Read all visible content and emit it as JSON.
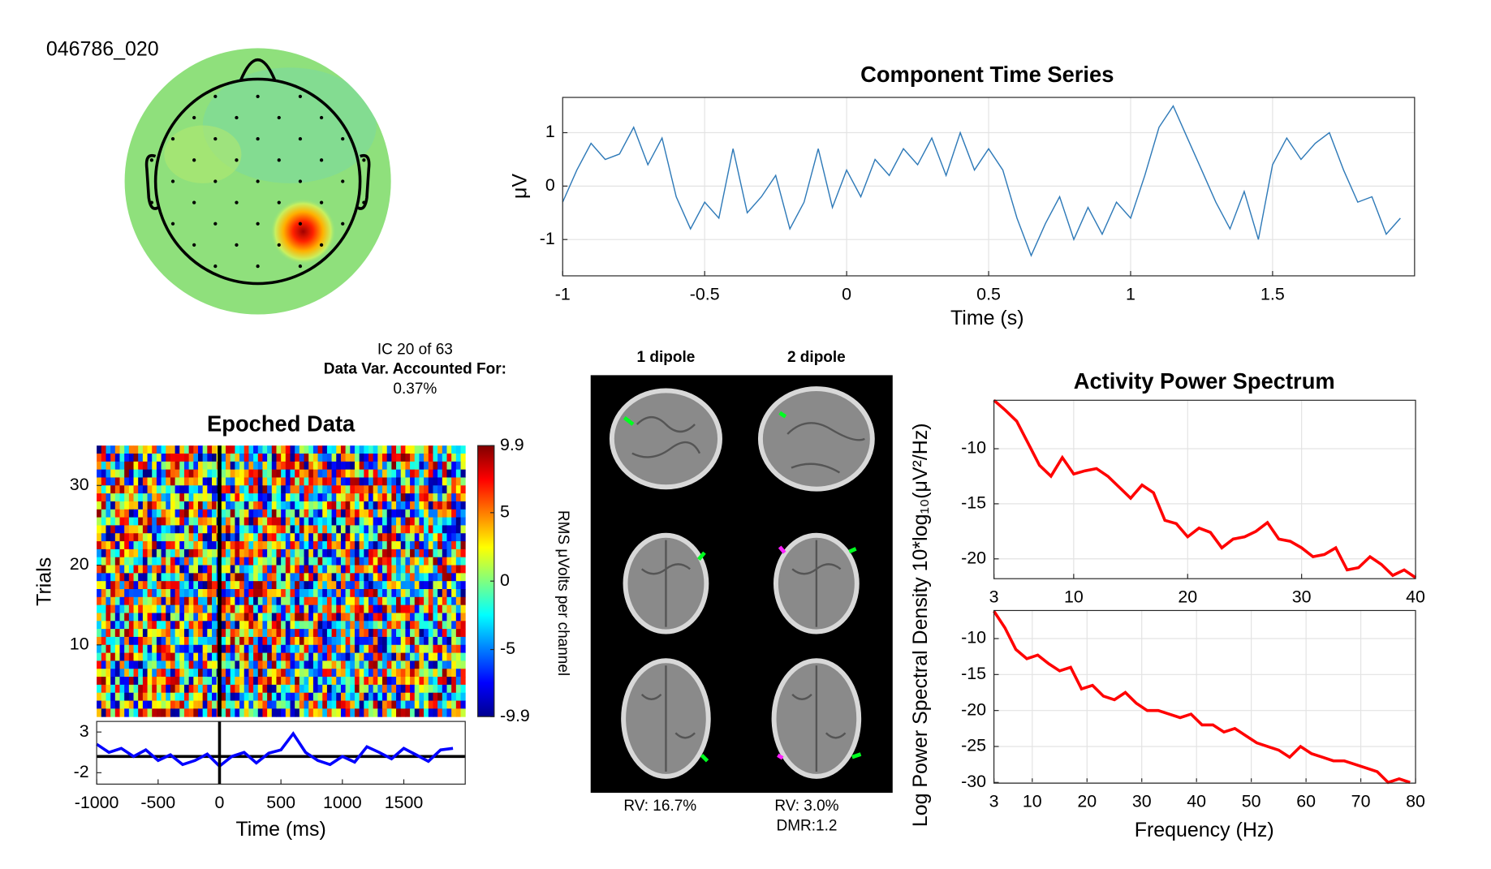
{
  "chart_data": [
    {
      "type": "topomap",
      "title": "046786_020"
    },
    {
      "type": "line",
      "title": "Component Time Series",
      "x_label": "Time (s)",
      "y_label": "μV",
      "color": "#2f7ab8",
      "grid": true,
      "x": [
        -1,
        -0.95,
        -0.9,
        -0.85,
        -0.8,
        -0.75,
        -0.7,
        -0.65,
        -0.6,
        -0.55,
        -0.5,
        -0.45,
        -0.4,
        -0.35,
        -0.3,
        -0.25,
        -0.2,
        -0.15,
        -0.1,
        -0.05,
        0,
        0.05,
        0.1,
        0.15,
        0.2,
        0.25,
        0.3,
        0.35,
        0.4,
        0.45,
        0.5,
        0.55,
        0.6,
        0.65,
        0.7,
        0.75,
        0.8,
        0.85,
        0.9,
        0.95,
        1,
        1.05,
        1.1,
        1.15,
        1.2,
        1.25,
        1.3,
        1.35,
        1.4,
        1.45,
        1.5,
        1.55,
        1.6,
        1.65,
        1.7,
        1.75,
        1.8,
        1.85,
        1.9,
        1.95
      ],
      "values": [
        -0.3,
        0.3,
        0.8,
        0.5,
        0.6,
        1.1,
        0.4,
        0.9,
        -0.2,
        -0.8,
        -0.3,
        -0.6,
        0.7,
        -0.5,
        -0.2,
        0.2,
        -0.8,
        -0.3,
        0.7,
        -0.4,
        0.3,
        -0.2,
        0.5,
        0.2,
        0.7,
        0.4,
        0.9,
        0.2,
        1.0,
        0.3,
        0.7,
        0.3,
        -0.6,
        -1.3,
        -0.7,
        -0.2,
        -1.0,
        -0.4,
        -0.9,
        -0.3,
        -0.6,
        0.2,
        1.1,
        1.5,
        0.9,
        0.3,
        -0.3,
        -0.8,
        -0.1,
        -1.0,
        0.4,
        0.9,
        0.5,
        0.8,
        1.0,
        0.3,
        -0.3,
        -0.2,
        -0.9,
        -0.6
      ],
      "xlim": [
        -1,
        2
      ],
      "xticks": [
        -1,
        -0.5,
        0,
        0.5,
        1,
        1.5
      ],
      "ylim": [
        -1.68,
        1.66
      ],
      "yticks": [
        -1,
        0,
        1
      ]
    },
    {
      "type": "image",
      "title": "Epoched Data",
      "y_label": "Trials",
      "ylim": [
        1,
        35
      ],
      "yticks": [
        10,
        20,
        30
      ],
      "xlim": [
        -1000,
        2000
      ],
      "colormap": "jet",
      "colorbar": {
        "label": "RMS μVolts per channel",
        "clim": [
          -9.9,
          9.9
        ],
        "ticks": [
          9.9,
          5,
          0,
          -5,
          -9.9
        ]
      },
      "annotations": [
        "IC 20 of 63",
        "Data Var. Accounted For:",
        "0.37%"
      ]
    },
    {
      "type": "line",
      "x_label": "Time (ms)",
      "color": "#0000ff",
      "grid": false,
      "x": [
        -1000,
        -900,
        -800,
        -700,
        -600,
        -500,
        -400,
        -300,
        -200,
        -100,
        0,
        100,
        200,
        300,
        400,
        500,
        600,
        700,
        800,
        900,
        1000,
        1100,
        1200,
        1300,
        1400,
        1500,
        1600,
        1700,
        1800,
        1900
      ],
      "values": [
        1.5,
        0.5,
        1,
        0,
        0.8,
        -0.5,
        0.2,
        -1,
        -0.5,
        0.3,
        -1.2,
        0,
        0.5,
        -0.8,
        0.4,
        0.8,
        2.8,
        0.5,
        -0.5,
        -1,
        0,
        -0.7,
        1.2,
        0.5,
        -0.3,
        1,
        0.2,
        -0.6,
        0.8,
        1.0
      ],
      "xlim": [
        -1000,
        2000
      ],
      "xticks": [
        -1000,
        -500,
        0,
        500,
        1000,
        1500
      ],
      "ylim": [
        -3.4,
        4.3
      ],
      "yticks": [
        -2,
        3
      ]
    },
    {
      "type": "dipole",
      "labels": [
        "1 dipole",
        "2 dipole"
      ],
      "annotations": [
        "RV: 16.7%",
        "RV: 3.0%",
        "DMR:1.2"
      ]
    },
    {
      "type": "line",
      "title": "Activity Power Spectrum",
      "y_label": "Log Power Spectral Density 10*log₁₀(μV²/Hz)",
      "color": "#ff0000",
      "grid": true,
      "x": [
        3,
        4,
        5,
        6,
        7,
        8,
        9,
        10,
        11,
        12,
        13,
        14,
        15,
        16,
        17,
        18,
        19,
        20,
        21,
        22,
        23,
        24,
        25,
        26,
        27,
        28,
        29,
        30,
        31,
        32,
        33,
        34,
        35,
        36,
        37,
        38,
        39,
        40
      ],
      "values": [
        -5.6,
        -6.5,
        -7.5,
        -9.5,
        -11.5,
        -12.5,
        -10.8,
        -12.3,
        -12.0,
        -11.8,
        -12.5,
        -13.5,
        -14.5,
        -13.3,
        -14.0,
        -16.5,
        -16.8,
        -18.0,
        -17.2,
        -17.6,
        -19.0,
        -18.2,
        -18.0,
        -17.5,
        -16.7,
        -18.2,
        -18.4,
        -19.0,
        -19.8,
        -19.6,
        -19.0,
        -21.0,
        -20.8,
        -19.8,
        -20.5,
        -21.5,
        -21.0,
        -21.7
      ],
      "xlim": [
        3,
        40
      ],
      "xticks": [
        3,
        10,
        20,
        30,
        40
      ],
      "ylim": [
        -21.8,
        -5.6
      ],
      "yticks": [
        -20,
        -15,
        -10
      ]
    },
    {
      "type": "line",
      "x_label": "Frequency (Hz)",
      "color": "#ff0000",
      "grid": true,
      "x": [
        3,
        5,
        7,
        9,
        11,
        13,
        15,
        17,
        19,
        21,
        23,
        25,
        27,
        29,
        31,
        33,
        35,
        37,
        39,
        41,
        43,
        45,
        47,
        49,
        51,
        53,
        55,
        57,
        59,
        61,
        63,
        65,
        67,
        69,
        71,
        73,
        75,
        77,
        79
      ],
      "values": [
        -6.2,
        -8.5,
        -11.5,
        -12.8,
        -12.3,
        -13.5,
        -14.5,
        -14.0,
        -17,
        -16.5,
        -18.0,
        -18.5,
        -17.5,
        -19.0,
        -20.0,
        -20.0,
        -20.5,
        -21.0,
        -20.5,
        -22.0,
        -22.0,
        -23.0,
        -22.5,
        -23.5,
        -24.5,
        -25.0,
        -25.5,
        -26.5,
        -25.0,
        -26.0,
        -26.5,
        -27.0,
        -27.0,
        -27.5,
        -28.0,
        -28.5,
        -30.0,
        -29.5,
        -30.0
      ],
      "xlim": [
        3,
        80
      ],
      "xticks": [
        3,
        10,
        20,
        30,
        40,
        50,
        60,
        70,
        80
      ],
      "ylim": [
        -30.1,
        -6.1
      ],
      "yticks": [
        -30,
        -25,
        -20,
        -15,
        -10
      ]
    }
  ]
}
